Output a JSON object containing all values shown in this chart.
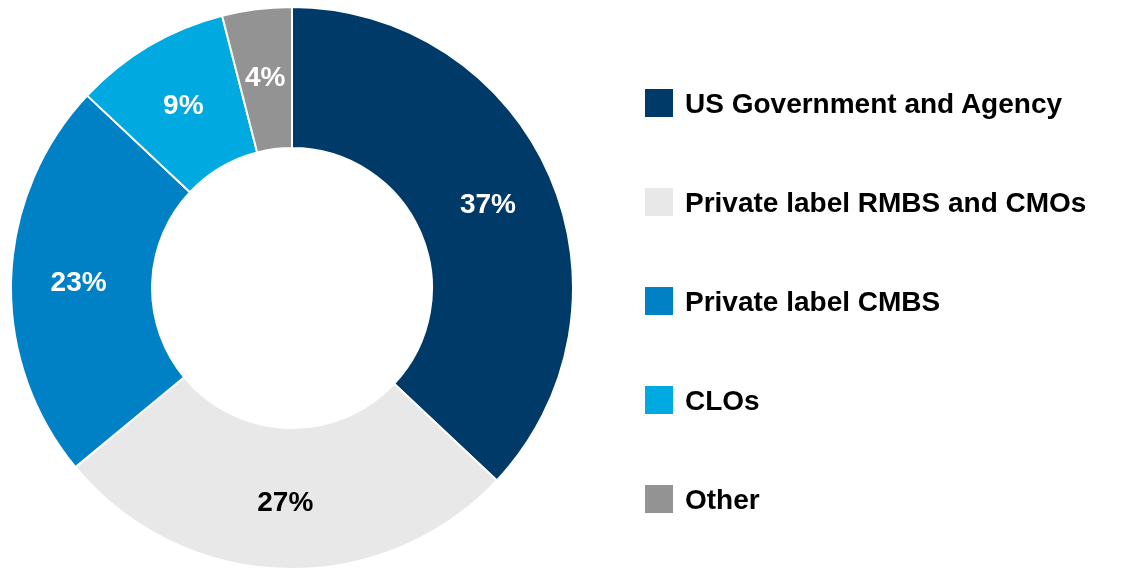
{
  "chart_data": {
    "type": "donut",
    "categories": [
      "US Government and Agency",
      "Private label RMBS and CMOs",
      "Private label CMBS",
      "CLOs",
      "Other"
    ],
    "values": [
      37,
      27,
      23,
      9,
      4
    ],
    "colors": [
      "#003a69",
      "#e8e8e8",
      "#0081c6",
      "#00a9e0",
      "#939393"
    ],
    "value_labels": [
      "37%",
      "27%",
      "23%",
      "9%",
      "4%"
    ],
    "legend": "right"
  }
}
